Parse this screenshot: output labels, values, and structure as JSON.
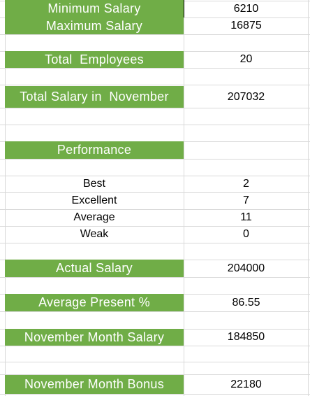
{
  "theme": {
    "header_fill": "#70ad47",
    "header_text": "#ffffff",
    "gridline": "#d9d9d9"
  },
  "rows": {
    "min_salary": {
      "label": "Minimum Salary",
      "value": "6210"
    },
    "max_salary": {
      "label": "Maximum Salary",
      "value": "16875"
    },
    "total_employees": {
      "label": "Total  Employees",
      "value": "20"
    },
    "total_salary_nov": {
      "label": "Total Salary in  November",
      "value": "207032"
    },
    "performance": {
      "label": "Performance"
    },
    "perf_best": {
      "label": "Best",
      "value": "2"
    },
    "perf_excellent": {
      "label": "Excellent",
      "value": "7"
    },
    "perf_average": {
      "label": "Average",
      "value": "11"
    },
    "perf_weak": {
      "label": "Weak",
      "value": "0"
    },
    "actual_salary": {
      "label": "Actual Salary",
      "value": "204000"
    },
    "average_present": {
      "label": "Average Present %",
      "value": "86.55"
    },
    "nov_month_salary": {
      "label": "November Month Salary",
      "value": "184850"
    },
    "nov_month_bonus": {
      "label": "November Month Bonus",
      "value": "22180"
    }
  }
}
